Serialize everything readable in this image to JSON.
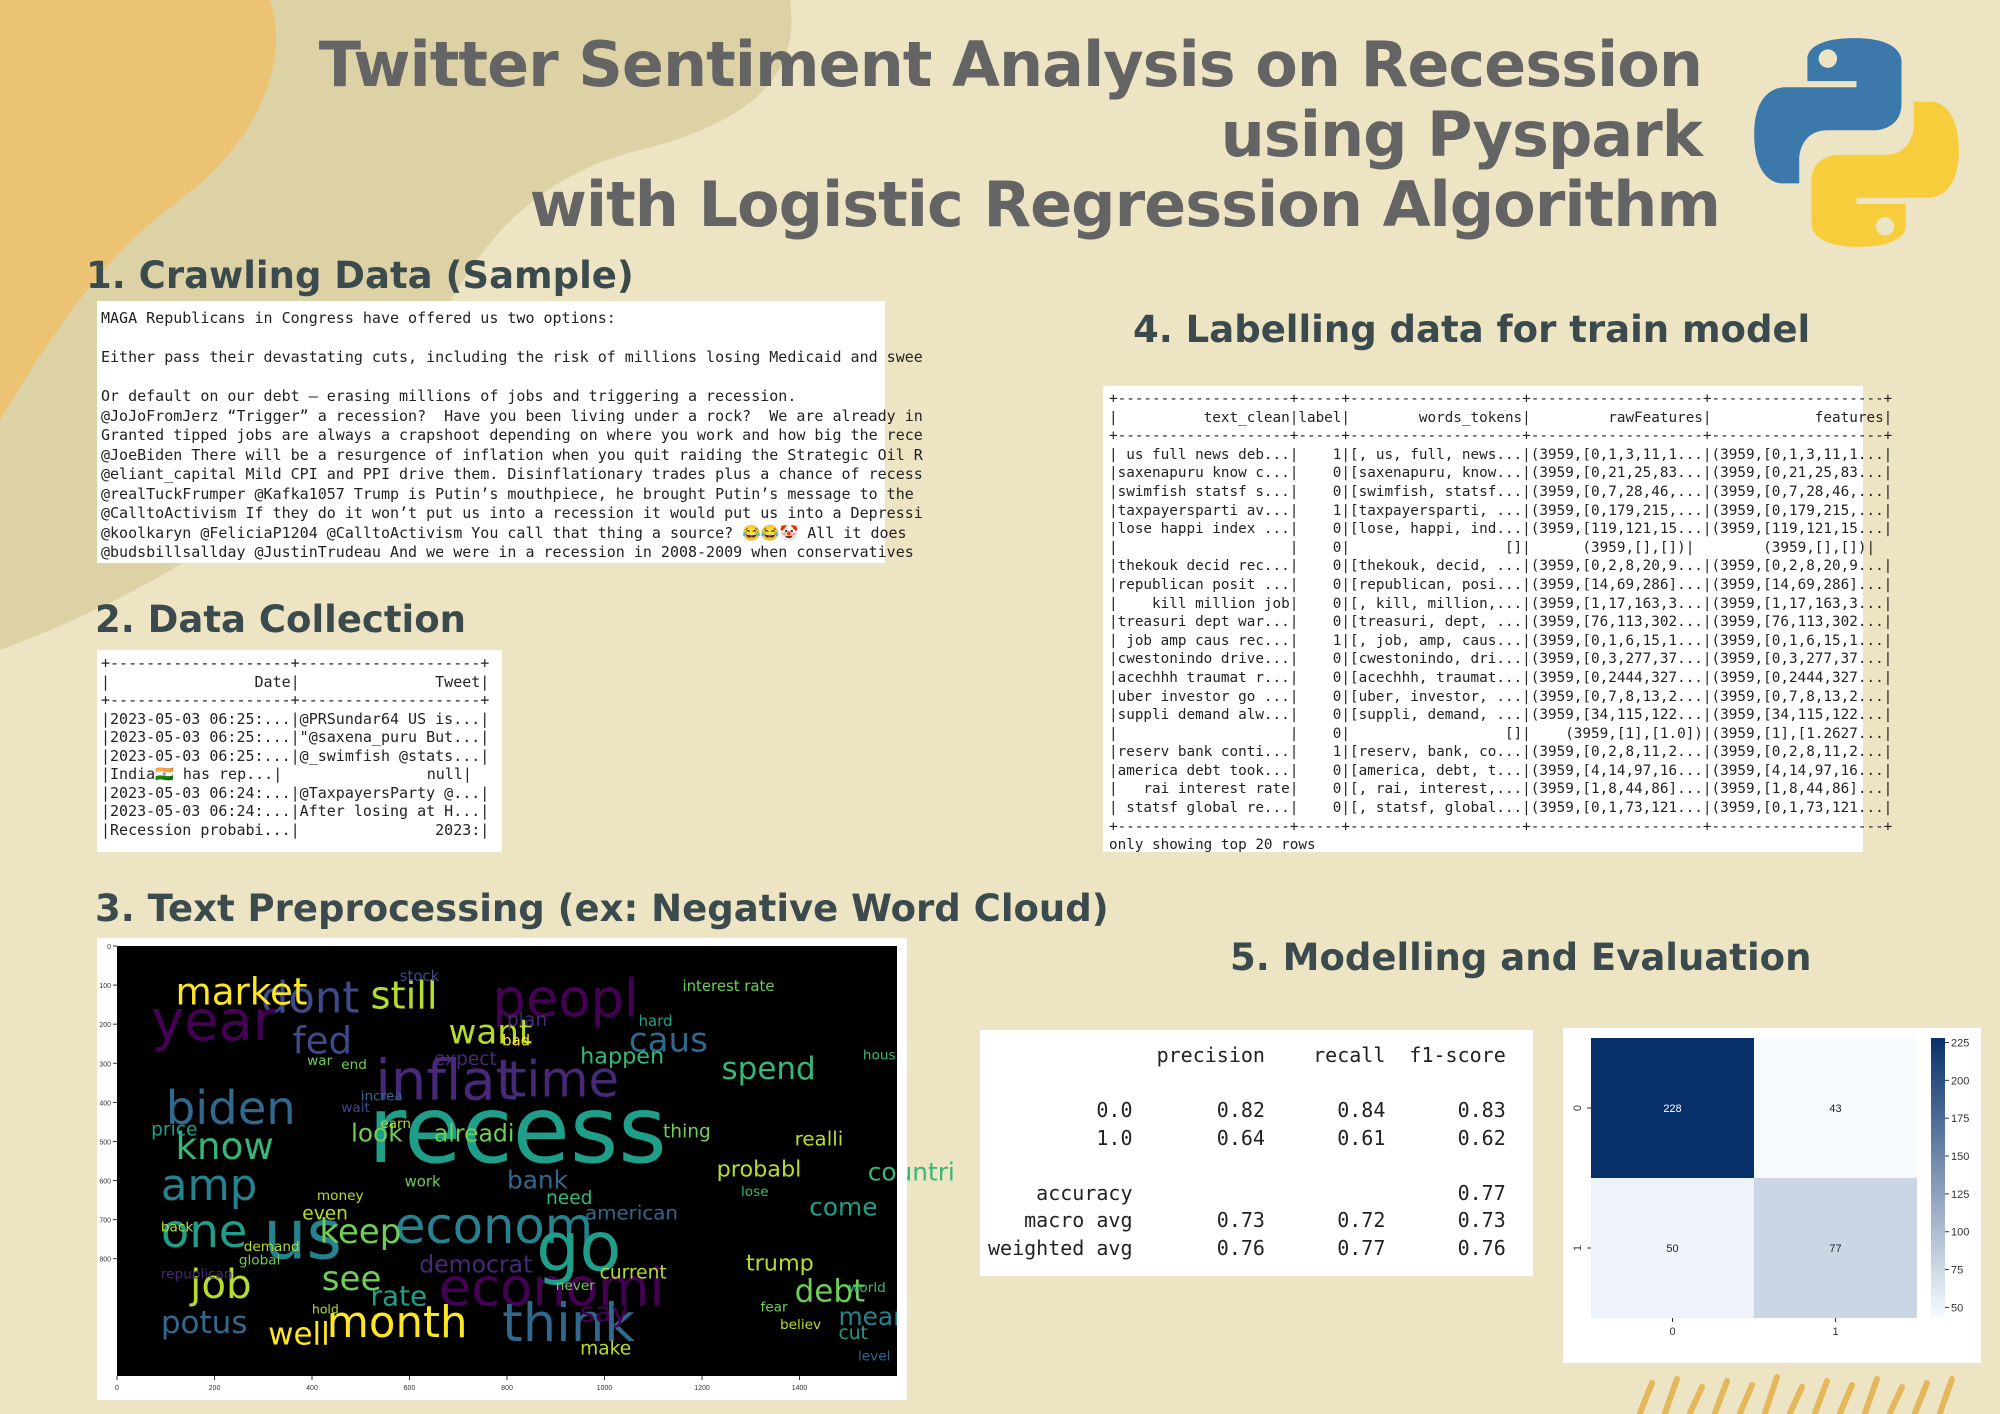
{
  "title": {
    "line1": "Twitter Sentiment Analysis on Recession",
    "line2": "using Pyspark",
    "line3": "with Logistic Regression Algorithm"
  },
  "logo_icon": "python-logo-icon",
  "sections": {
    "crawl": "1. Crawling Data (Sample)",
    "collect": "2. Data Collection",
    "preprocess": "3. Text Preprocessing  (ex: Negative Word Cloud)",
    "label": "4. Labelling data for train model",
    "model": "5. Modelling and Evaluation"
  },
  "crawl_lines": [
    "MAGA Republicans in Congress have offered us two options:",
    "",
    "Either pass their devastating cuts, including the risk of millions losing Medicaid and swee",
    "",
    "Or default on our debt – erasing millions of jobs and triggering a recession.",
    "@JoJoFromJerz “Trigger” a recession?  Have you been living under a rock?  We are already in",
    "Granted tipped jobs are always a crapshoot depending on where you work and how big the rece",
    "@JoeBiden There will be a resurgence of inflation when you quit raiding the Strategic Oil R",
    "@eliant_capital Mild CPI and PPI drive them. Disinflationary trades plus a chance of recess",
    "@realTuckFrumper @Kafka1057 Trump is Putin’s mouthpiece, he brought Putin’s message to the",
    "@CalltoActivism If they do it won’t put us into a recession it would put us into a Depressi",
    "@koolkaryn @FeliciaP1204 @CalltoActivism You call that thing a source? 😂😂🤡 All it does",
    "@budsbillsallday @JustinTrudeau And we were in a recession in 2008-2009 when conservatives"
  ],
  "collect_lines": [
    "+--------------------+--------------------+",
    "|                Date|               Tweet|",
    "+--------------------+--------------------+",
    "|2023-05-03 06:25:...|@PRSundar64 US is...|",
    "|2023-05-03 06:25:...|\"@saxena_puru But...|",
    "|2023-05-03 06:25:...|@_swimfish @stats...|",
    "|India🇮🇳 has rep...|                null|",
    "|2023-05-03 06:24:...|@TaxpayersParty @...|",
    "|2023-05-03 06:24:...|After losing at H...|",
    "|Recession probabi...|               2023:|"
  ],
  "label_lines": [
    "+--------------------+-----+--------------------+--------------------+--------------------+",
    "|          text_clean|label|        words_tokens|         rawFeatures|            features|",
    "+--------------------+-----+--------------------+--------------------+--------------------+",
    "| us full news deb...|    1|[, us, full, news...|(3959,[0,1,3,11,1...|(3959,[0,1,3,11,1...|",
    "|saxenapuru know c...|    0|[saxenapuru, know...|(3959,[0,21,25,83...|(3959,[0,21,25,83...|",
    "|swimfish statsf s...|    0|[swimfish, statsf...|(3959,[0,7,28,46,...|(3959,[0,7,28,46,...|",
    "|taxpayersparti av...|    1|[taxpayersparti, ...|(3959,[0,179,215,...|(3959,[0,179,215,...|",
    "|lose happi index ...|    0|[lose, happi, ind...|(3959,[119,121,15...|(3959,[119,121,15...|",
    "|                    |    0|                  []|      (3959,[],[])|        (3959,[],[])|",
    "|thekouk decid rec...|    0|[thekouk, decid, ...|(3959,[0,2,8,20,9...|(3959,[0,2,8,20,9...|",
    "|republican posit ...|    0|[republican, posi...|(3959,[14,69,286]...|(3959,[14,69,286]...|",
    "|    kill million job|    0|[, kill, million,...|(3959,[1,17,163,3...|(3959,[1,17,163,3...|",
    "|treasuri dept war...|    0|[treasuri, dept, ...|(3959,[76,113,302...|(3959,[76,113,302...|",
    "| job amp caus rec...|    1|[, job, amp, caus...|(3959,[0,1,6,15,1...|(3959,[0,1,6,15,1...|",
    "|cwestonindo drive...|    0|[cwestonindo, dri...|(3959,[0,3,277,37...|(3959,[0,3,277,37...|",
    "|acechhh traumat r...|    0|[acechhh, traumat...|(3959,[0,2444,327...|(3959,[0,2444,327...|",
    "|uber investor go ...|    0|[uber, investor, ...|(3959,[0,7,8,13,2...|(3959,[0,7,8,13,2...|",
    "|suppli demand alw...|    0|[suppli, demand, ...|(3959,[34,115,122...|(3959,[34,115,122...|",
    "|                    |    0|                  []|    (3959,[1],[1.0])|(3959,[1],[1.2627...|",
    "|reserv bank conti...|    1|[reserv, bank, co...|(3959,[0,2,8,11,2...|(3959,[0,2,8,11,2...|",
    "|america debt took...|    0|[america, debt, t...|(3959,[4,14,97,16...|(3959,[4,14,97,16...|",
    "|   rai interest rate|    0|[, rai, interest,...|(3959,[1,8,44,86]...|(3959,[1,8,44,86]...|",
    "| statsf global re...|    0|[, statsf, global...|(3959,[0,1,73,121...|(3959,[0,1,73,121...|",
    "+--------------------+-----+--------------------+--------------------+--------------------+",
    "only showing top 20 rows"
  ],
  "report_lines": [
    "              precision    recall  f1-score",
    "",
    "         0.0       0.82      0.84      0.83",
    "         1.0       0.64      0.61      0.62",
    "",
    "    accuracy                           0.77",
    "   macro avg       0.73      0.72      0.73",
    "weighted avg       0.76      0.77      0.76"
  ],
  "wordcloud": {
    "x_ticks": [
      "0",
      "200",
      "400",
      "600",
      "800",
      "1000",
      "1200",
      "1400"
    ],
    "y_ticks": [
      "0",
      "100",
      "200",
      "300",
      "400",
      "500",
      "600",
      "700",
      "800"
    ],
    "palette": [
      "#440154",
      "#482878",
      "#3e4a89",
      "#31688e",
      "#26828e",
      "#1f9e89",
      "#35b779",
      "#6ece58",
      "#b5de2b",
      "#fde725"
    ],
    "words": [
      {
        "t": "recess",
        "x": 515,
        "y": 552,
        "s": 150,
        "c": 5
      },
      {
        "t": "inflat",
        "x": 530,
        "y": 393,
        "s": 90,
        "c": 1
      },
      {
        "t": "dont",
        "x": 295,
        "y": 170,
        "s": 70,
        "c": 2
      },
      {
        "t": "still",
        "x": 520,
        "y": 160,
        "s": 62,
        "c": 8
      },
      {
        "t": "market",
        "x": 120,
        "y": 150,
        "s": 60,
        "c": 9
      },
      {
        "t": "peopl",
        "x": 770,
        "y": 180,
        "s": 85,
        "c": 0
      },
      {
        "t": "year",
        "x": 70,
        "y": 240,
        "s": 90,
        "c": 0
      },
      {
        "t": "biden",
        "x": 100,
        "y": 455,
        "s": 75,
        "c": 3
      },
      {
        "t": "time",
        "x": 800,
        "y": 385,
        "s": 80,
        "c": 1
      },
      {
        "t": "econom",
        "x": 570,
        "y": 760,
        "s": 80,
        "c": 4
      },
      {
        "t": "economi",
        "x": 660,
        "y": 920,
        "s": 85,
        "c": 0
      },
      {
        "t": "go",
        "x": 860,
        "y": 830,
        "s": 110,
        "c": 5
      },
      {
        "t": "think",
        "x": 790,
        "y": 1010,
        "s": 85,
        "c": 3
      },
      {
        "t": "month",
        "x": 430,
        "y": 1000,
        "s": 70,
        "c": 9
      },
      {
        "t": "us",
        "x": 300,
        "y": 800,
        "s": 110,
        "c": 4
      },
      {
        "t": "job",
        "x": 150,
        "y": 900,
        "s": 65,
        "c": 8
      },
      {
        "t": "one",
        "x": 90,
        "y": 770,
        "s": 75,
        "c": 5
      },
      {
        "t": "amp",
        "x": 90,
        "y": 650,
        "s": 70,
        "c": 4
      },
      {
        "t": "know",
        "x": 120,
        "y": 545,
        "s": 60,
        "c": 6
      },
      {
        "t": "fed",
        "x": 360,
        "y": 275,
        "s": 60,
        "c": 2
      },
      {
        "t": "want",
        "x": 680,
        "y": 250,
        "s": 55,
        "c": 8
      },
      {
        "t": "caus",
        "x": 1050,
        "y": 270,
        "s": 55,
        "c": 3
      },
      {
        "t": "spend",
        "x": 1240,
        "y": 340,
        "s": 50,
        "c": 6
      },
      {
        "t": "keep",
        "x": 415,
        "y": 760,
        "s": 55,
        "c": 7
      },
      {
        "t": "potus",
        "x": 90,
        "y": 990,
        "s": 50,
        "c": 3
      },
      {
        "t": "well",
        "x": 310,
        "y": 1020,
        "s": 50,
        "c": 9
      },
      {
        "t": "debt",
        "x": 1390,
        "y": 910,
        "s": 50,
        "c": 7
      },
      {
        "t": "mean",
        "x": 1480,
        "y": 970,
        "s": 40,
        "c": 4
      },
      {
        "t": "look",
        "x": 480,
        "y": 500,
        "s": 40,
        "c": 7
      },
      {
        "t": "alreadi",
        "x": 650,
        "y": 500,
        "s": 38,
        "c": 7
      },
      {
        "t": "bank",
        "x": 800,
        "y": 620,
        "s": 40,
        "c": 3
      },
      {
        "t": "american",
        "x": 960,
        "y": 700,
        "s": 32,
        "c": 3
      },
      {
        "t": "democrat",
        "x": 620,
        "y": 835,
        "s": 38,
        "c": 1
      },
      {
        "t": "current",
        "x": 990,
        "y": 850,
        "s": 30,
        "c": 8
      },
      {
        "t": "say",
        "x": 950,
        "y": 960,
        "s": 45,
        "c": 0
      },
      {
        "t": "happen",
        "x": 950,
        "y": 300,
        "s": 36,
        "c": 6
      },
      {
        "t": "interest rate",
        "x": 1160,
        "y": 115,
        "s": 24,
        "c": 7
      },
      {
        "t": "probabl",
        "x": 1230,
        "y": 590,
        "s": 36,
        "c": 8
      },
      {
        "t": "trump",
        "x": 1290,
        "y": 830,
        "s": 36,
        "c": 8
      },
      {
        "t": "come",
        "x": 1420,
        "y": 690,
        "s": 40,
        "c": 5
      },
      {
        "t": "countri",
        "x": 1540,
        "y": 600,
        "s": 40,
        "c": 6
      },
      {
        "t": "need",
        "x": 880,
        "y": 660,
        "s": 30,
        "c": 6
      },
      {
        "t": "realli",
        "x": 1390,
        "y": 510,
        "s": 32,
        "c": 8
      },
      {
        "t": "thing",
        "x": 1120,
        "y": 490,
        "s": 30,
        "c": 7
      },
      {
        "t": "see",
        "x": 420,
        "y": 880,
        "s": 55,
        "c": 7
      },
      {
        "t": "rate",
        "x": 520,
        "y": 920,
        "s": 45,
        "c": 5
      },
      {
        "t": "expect",
        "x": 650,
        "y": 305,
        "s": 30,
        "c": 1
      },
      {
        "t": "price",
        "x": 70,
        "y": 485,
        "s": 30,
        "c": 5
      },
      {
        "t": "world",
        "x": 1500,
        "y": 885,
        "s": 22,
        "c": 6
      },
      {
        "t": "make",
        "x": 950,
        "y": 1045,
        "s": 30,
        "c": 8
      },
      {
        "t": "even",
        "x": 380,
        "y": 700,
        "s": 30,
        "c": 8
      },
      {
        "t": "demand",
        "x": 260,
        "y": 780,
        "s": 22,
        "c": 8
      },
      {
        "t": "global",
        "x": 250,
        "y": 815,
        "s": 22,
        "c": 7
      },
      {
        "t": "republican",
        "x": 90,
        "y": 850,
        "s": 22,
        "c": 1
      },
      {
        "t": "back",
        "x": 90,
        "y": 730,
        "s": 22,
        "c": 8
      },
      {
        "t": "work",
        "x": 590,
        "y": 615,
        "s": 24,
        "c": 7
      },
      {
        "t": "lose",
        "x": 1280,
        "y": 640,
        "s": 22,
        "c": 6
      },
      {
        "t": "plan",
        "x": 800,
        "y": 205,
        "s": 30,
        "c": 1
      },
      {
        "t": "bad",
        "x": 790,
        "y": 255,
        "s": 24,
        "c": 9
      },
      {
        "t": "earn",
        "x": 540,
        "y": 465,
        "s": 22,
        "c": 8
      },
      {
        "t": "wait",
        "x": 460,
        "y": 425,
        "s": 22,
        "c": 2
      },
      {
        "t": "increa",
        "x": 500,
        "y": 395,
        "s": 22,
        "c": 3
      },
      {
        "t": "end",
        "x": 460,
        "y": 315,
        "s": 22,
        "c": 7
      },
      {
        "t": "war",
        "x": 390,
        "y": 305,
        "s": 22,
        "c": 7
      },
      {
        "t": "cut",
        "x": 1480,
        "y": 1005,
        "s": 30,
        "c": 5
      },
      {
        "t": "hous",
        "x": 1530,
        "y": 290,
        "s": 22,
        "c": 6
      },
      {
        "t": "stock",
        "x": 580,
        "y": 90,
        "s": 24,
        "c": 2
      },
      {
        "t": "hard",
        "x": 1070,
        "y": 205,
        "s": 24,
        "c": 5
      },
      {
        "t": "level",
        "x": 1520,
        "y": 1060,
        "s": 22,
        "c": 3
      },
      {
        "t": "never",
        "x": 900,
        "y": 880,
        "s": 22,
        "c": 7
      },
      {
        "t": "believ",
        "x": 1360,
        "y": 980,
        "s": 22,
        "c": 8
      },
      {
        "t": "hold",
        "x": 400,
        "y": 940,
        "s": 20,
        "c": 8
      },
      {
        "t": "money",
        "x": 410,
        "y": 650,
        "s": 22,
        "c": 8
      },
      {
        "t": "fear",
        "x": 1320,
        "y": 935,
        "s": 22,
        "c": 7
      }
    ]
  },
  "confusion_matrix": {
    "values": [
      [
        228,
        43
      ],
      [
        50,
        77
      ]
    ],
    "x_ticks": [
      "0",
      "1"
    ],
    "y_ticks": [
      "0",
      "1"
    ],
    "colorbar_ticks": [
      225,
      200,
      175,
      150,
      125,
      100,
      75,
      50
    ],
    "vmin": 43,
    "vmax": 228,
    "cmap": "Blues"
  },
  "colors": {
    "background": "#ece4c2",
    "blob_orange": "#ebc373",
    "blob_tan": "#ddd2a6",
    "title": "#646464",
    "heading": "#3b4a4d",
    "python_blue": "#3d78aa",
    "python_yellow": "#f7cd3c"
  }
}
